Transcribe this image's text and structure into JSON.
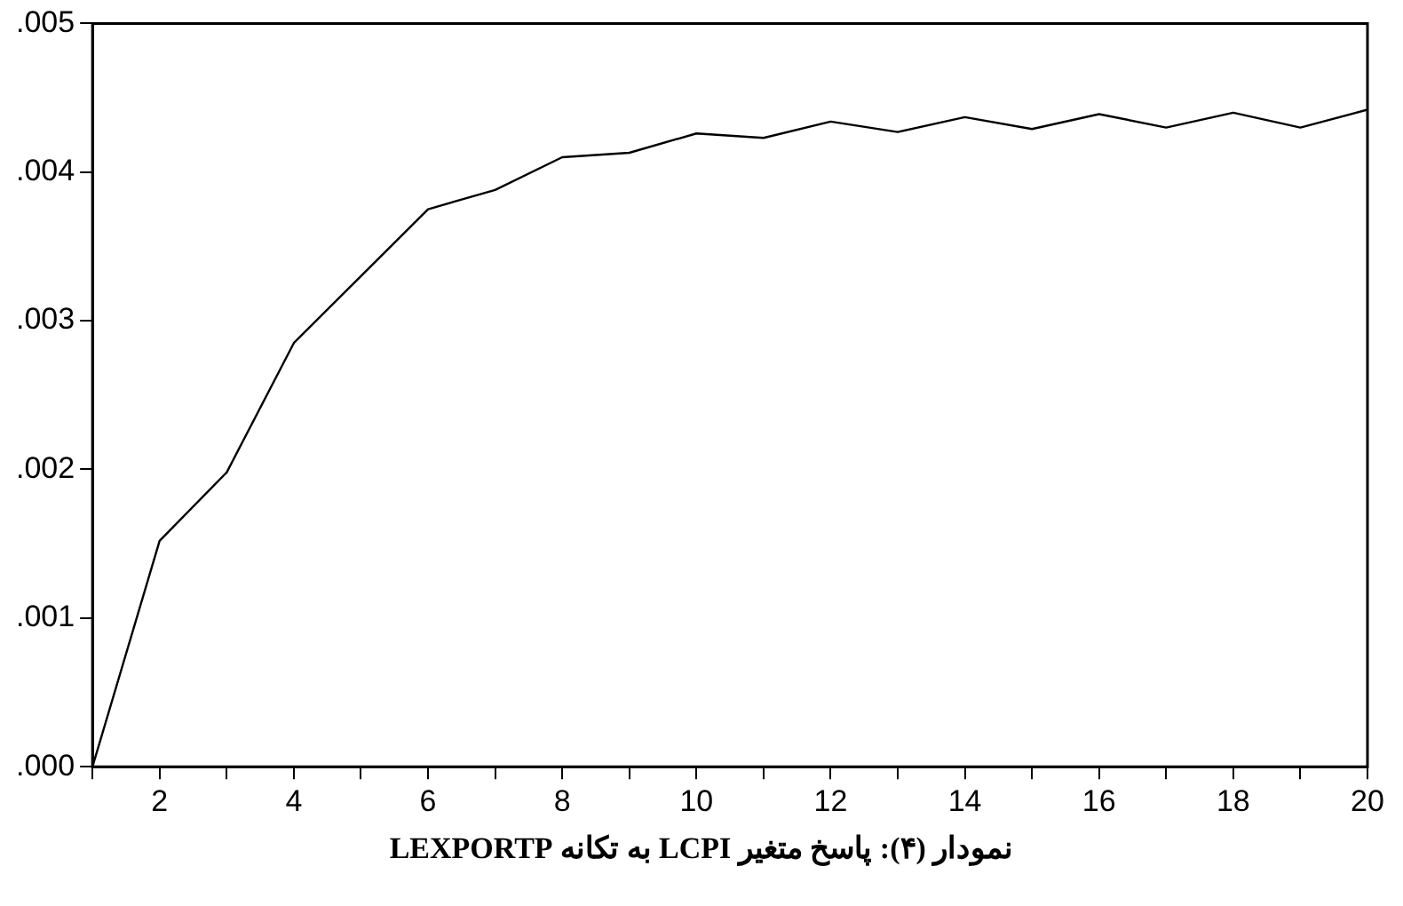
{
  "chart_data": {
    "type": "line",
    "x": [
      1,
      2,
      3,
      4,
      5,
      6,
      7,
      8,
      9,
      10,
      11,
      12,
      13,
      14,
      15,
      16,
      17,
      18,
      19,
      20
    ],
    "series": [
      {
        "color": "#000000",
        "values": [
          0,
          0.00152,
          0.00198,
          0.00285,
          0.0033,
          0.00375,
          0.00388,
          0.0041,
          0.00413,
          0.00426,
          0.00423,
          0.00434,
          0.00427,
          0.00437,
          0.00429,
          0.00439,
          0.0043,
          0.0044,
          0.0043,
          0.00442
        ]
      }
    ],
    "xlim": [
      1,
      20
    ],
    "xticks": [
      {
        "value": 1,
        "label": null
      },
      2,
      {
        "value": 3,
        "label": null
      },
      4,
      {
        "value": 5,
        "label": null
      },
      6,
      {
        "value": 7,
        "label": null
      },
      8,
      {
        "value": 9,
        "label": null
      },
      10,
      {
        "value": 11,
        "label": null
      },
      12,
      {
        "value": 13,
        "label": null
      },
      14,
      {
        "value": 15,
        "label": null
      },
      16,
      {
        "value": 17,
        "label": null
      },
      18,
      {
        "value": 19,
        "label": null
      },
      20
    ],
    "ylim": [
      0,
      0.005
    ],
    "yticks": [
      {
        "value": 0,
        "label": ".000"
      },
      {
        "value": 0.001,
        "label": ".001"
      },
      {
        "value": 0.002,
        "label": ".002"
      },
      {
        "value": 0.003,
        "label": ".003"
      },
      {
        "value": 0.004,
        "label": ".004"
      },
      {
        "value": 0.005,
        "label": ".005"
      }
    ],
    "grid": false,
    "legend": false,
    "marker": "none",
    "line_style": "solid",
    "annotations": [
      "نمودار (۴): پاسخ متغیر LCPI به تکانه LEXPORTP"
    ]
  }
}
